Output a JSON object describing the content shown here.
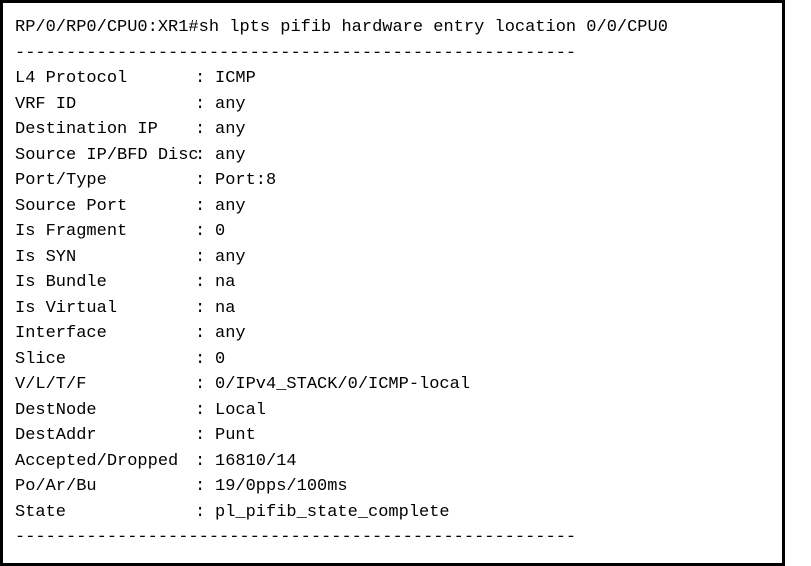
{
  "prompt": "RP/0/RP0/CPU0:XR1#",
  "command": "sh lpts pifib hardware entry location 0/0/CPU0",
  "divider": "-------------------------------------------------------",
  "rows": [
    {
      "k": "L4 Protocol",
      "v": "ICMP"
    },
    {
      "k": "VRF ID",
      "v": "any"
    },
    {
      "k": "Destination IP",
      "v": "any"
    },
    {
      "k": "Source IP/BFD Disc",
      "v": "any"
    },
    {
      "k": "Port/Type",
      "v": "Port:8"
    },
    {
      "k": "Source Port",
      "v": "any"
    },
    {
      "k": "Is Fragment",
      "v": "0"
    },
    {
      "k": "Is SYN",
      "v": "any"
    },
    {
      "k": "Is Bundle",
      "v": "na"
    },
    {
      "k": "Is Virtual",
      "v": "na"
    },
    {
      "k": "Interface",
      "v": "any"
    },
    {
      "k": "Slice",
      "v": "0"
    },
    {
      "k": "V/L/T/F",
      "v": "0/IPv4_STACK/0/ICMP-local"
    },
    {
      "k": "DestNode",
      "v": "Local"
    },
    {
      "k": "DestAddr",
      "v": "Punt"
    },
    {
      "k": "Accepted/Dropped",
      "v": "16810/14"
    },
    {
      "k": "Po/Ar/Bu",
      "v": "19/0pps/100ms"
    },
    {
      "k": "State",
      "v": "pl_pifib_state_complete"
    }
  ]
}
